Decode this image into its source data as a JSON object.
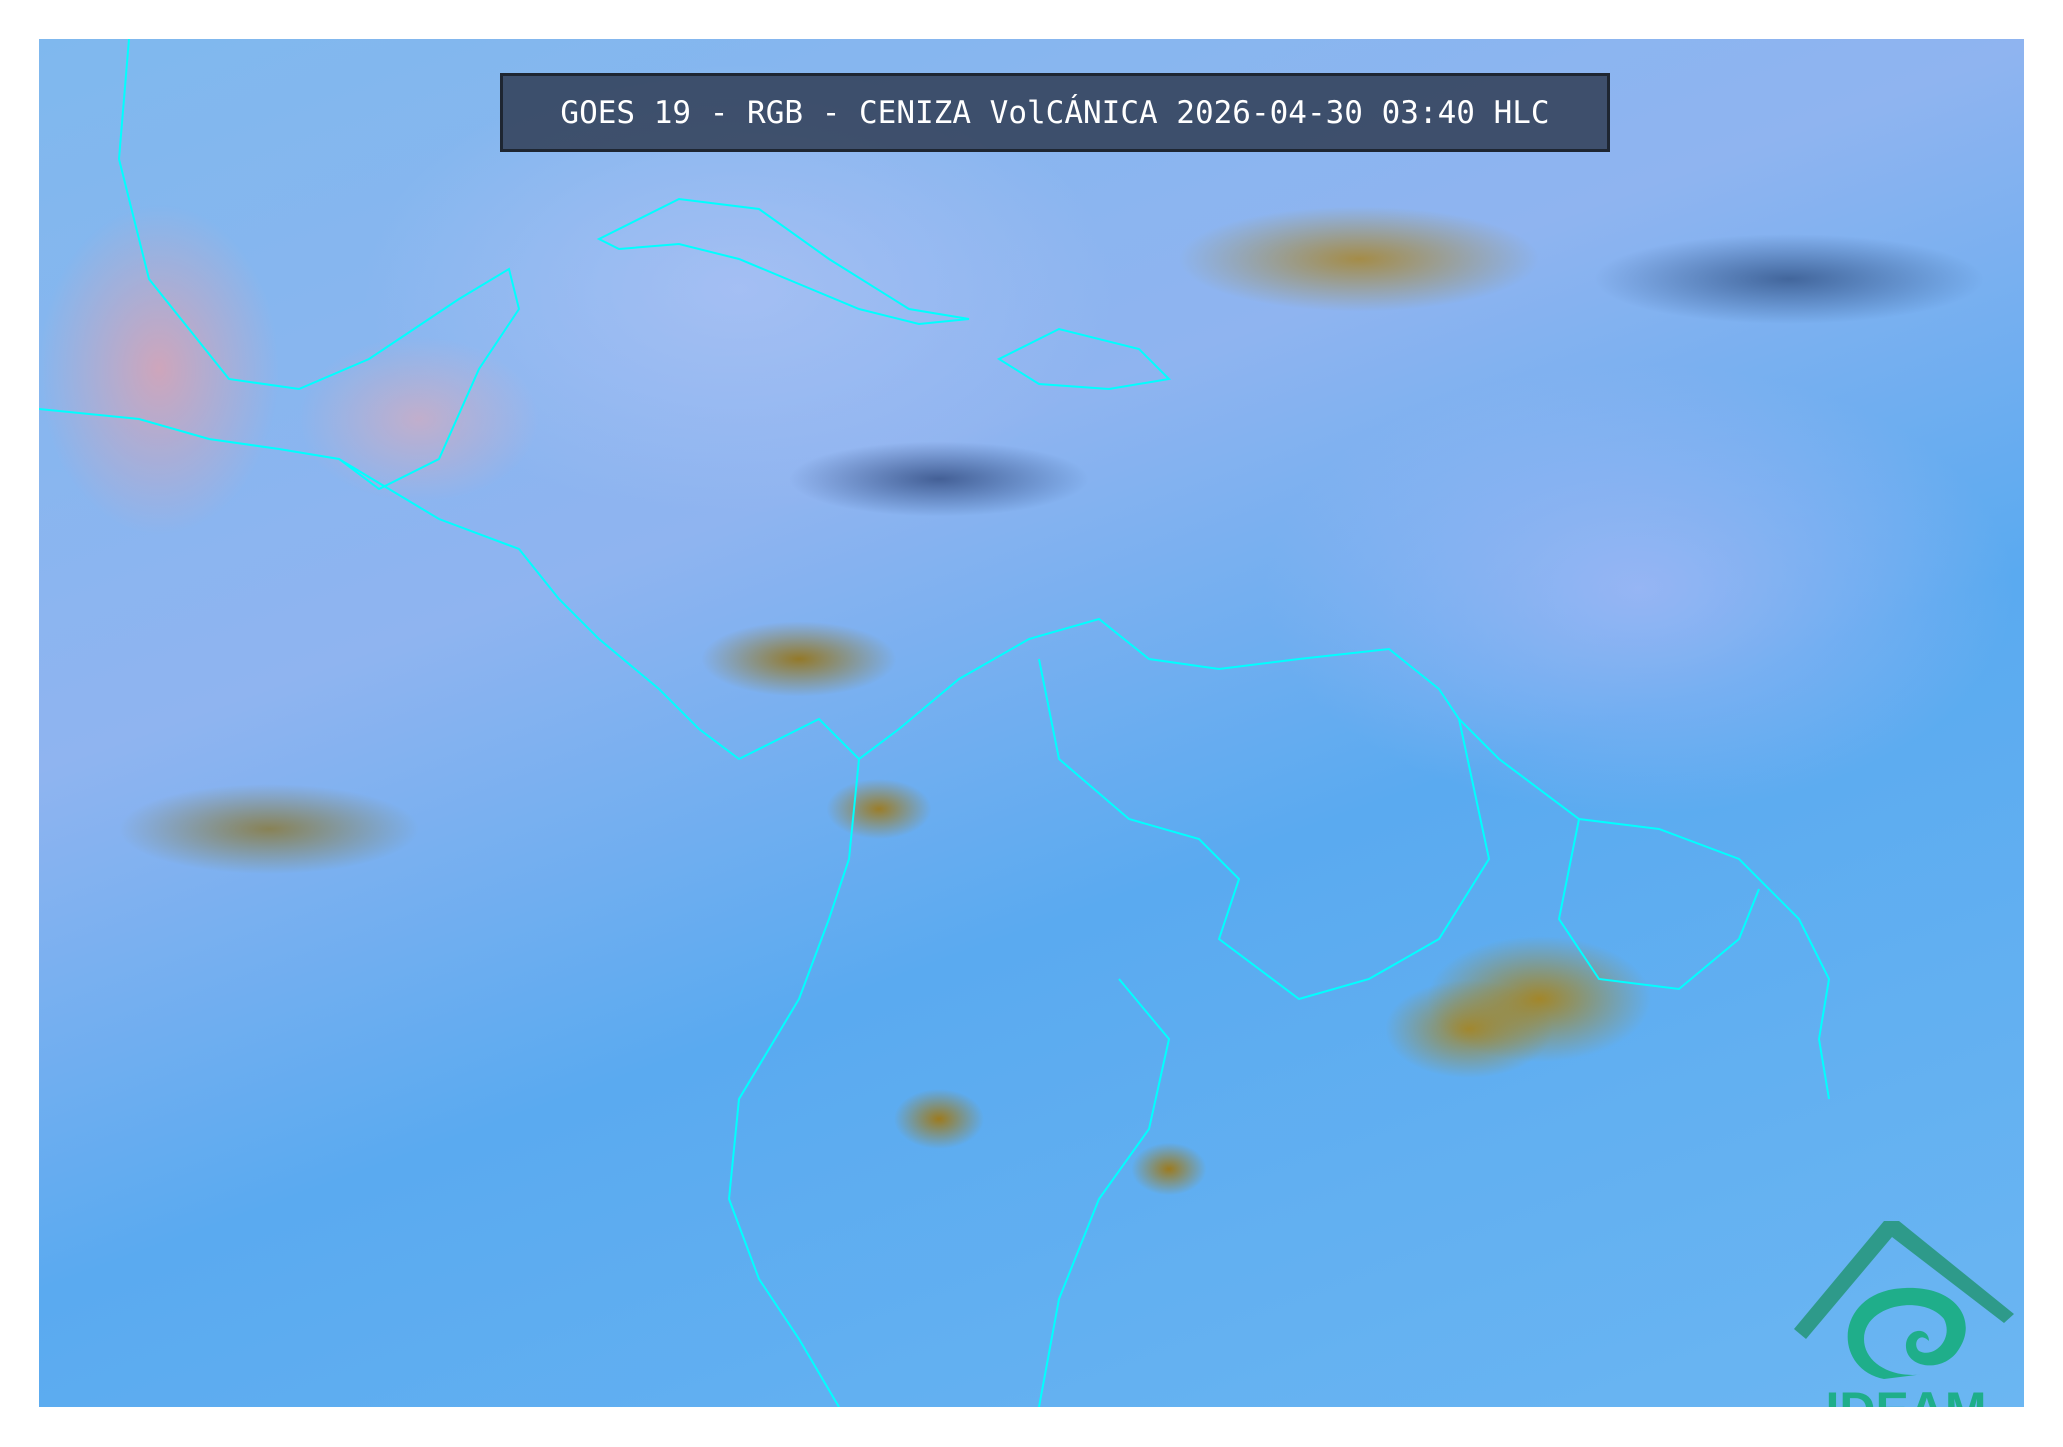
{
  "header": {
    "title": "GOES 19 - RGB - CENIZA VolCÁNICA 2026-04-30 03:40 HLC"
  },
  "logo": {
    "text": "IDEAM",
    "color": "#1fae8a"
  },
  "map": {
    "product": "RGB Ceniza Volcánica",
    "border_color": "#00ffff",
    "ash_cloud_color": "#b08a1e",
    "background_color": "#7fb8ee"
  }
}
